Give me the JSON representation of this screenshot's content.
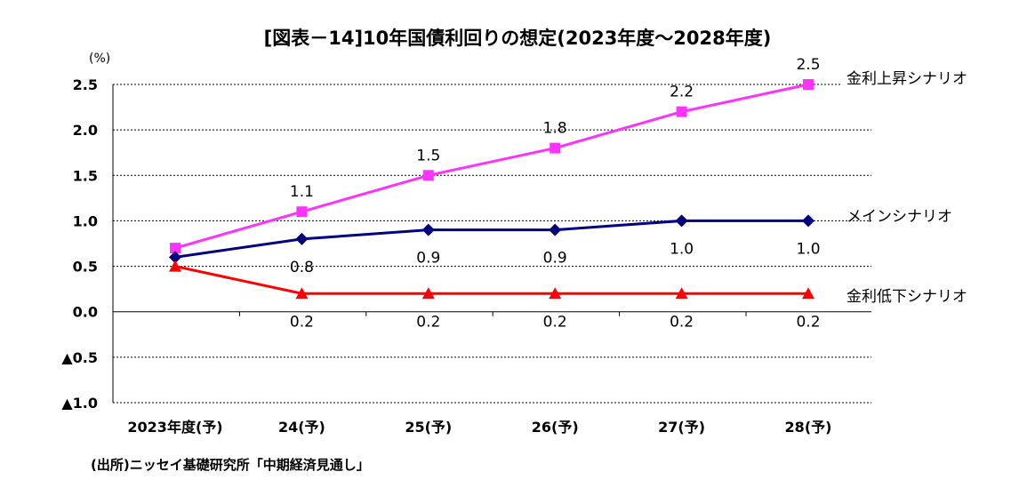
{
  "chart_data": {
    "type": "line",
    "title": "[図表－14]10年国債利回りの想定(2023年度～2028年度)",
    "unit": "(%)",
    "categories": [
      "2023年度(予)",
      "24(予)",
      "25(予)",
      "26(予)",
      "27(予)",
      "28(予)"
    ],
    "ylim": [
      -1.0,
      2.5
    ],
    "yticks": [
      2.5,
      2.0,
      1.5,
      1.0,
      0.5,
      0.0,
      -0.5,
      -1.0
    ],
    "ytick_labels": [
      "2.5",
      "2.0",
      "1.5",
      "1.0",
      "0.5",
      "0.0",
      "▲0.5",
      "▲1.0"
    ],
    "grid": true,
    "series": [
      {
        "name": "金利上昇シナリオ",
        "color": "#ff33ff",
        "marker": "square",
        "values": [
          0.7,
          1.1,
          1.5,
          1.8,
          2.2,
          2.5
        ],
        "labels": [
          "",
          "1.1",
          "1.5",
          "1.8",
          "2.2",
          "2.5"
        ],
        "label_position": "above"
      },
      {
        "name": "メインシナリオ",
        "color": "#000080",
        "marker": "diamond",
        "values": [
          0.6,
          0.8,
          0.9,
          0.9,
          1.0,
          1.0
        ],
        "labels": [
          "",
          "0.8",
          "0.9",
          "0.9",
          "1.0",
          "1.0"
        ],
        "label_position": "below"
      },
      {
        "name": "金利低下シナリオ",
        "color": "#ff0000",
        "marker": "triangle",
        "values": [
          0.5,
          0.2,
          0.2,
          0.2,
          0.2,
          0.2
        ],
        "labels": [
          "",
          "0.2",
          "0.2",
          "0.2",
          "0.2",
          "0.2"
        ],
        "label_position": "below_axis"
      }
    ],
    "source": "(出所)ニッセイ基礎研究所「中期経済見通し」"
  }
}
